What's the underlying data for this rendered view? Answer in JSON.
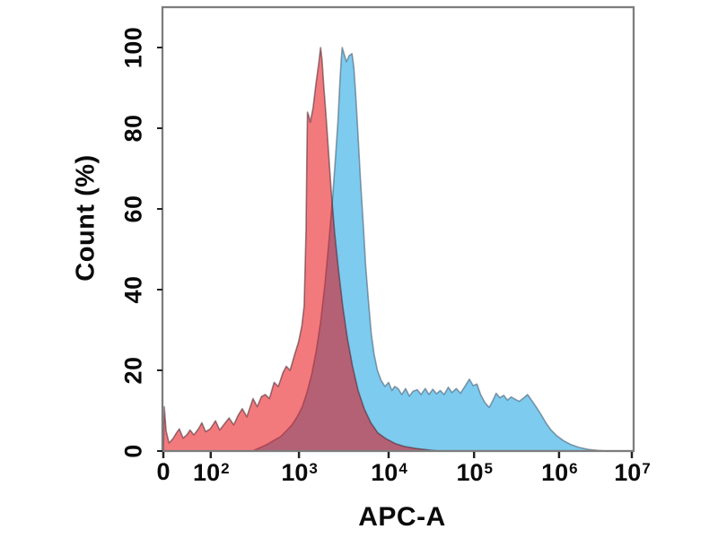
{
  "chart_data": {
    "type": "area",
    "subtype": "flow-cytometry-overlay-histogram",
    "title": "",
    "xlabel": "APC-A",
    "ylabel": "Count (%)",
    "x_scale": "biexponential-log",
    "grid": false,
    "legend": "none",
    "ylim": [
      0,
      100
    ],
    "y_ticks": [
      0,
      20,
      40,
      60,
      80,
      100
    ],
    "x_ticks": [
      {
        "base": "0",
        "exp": "",
        "frac": 0.0
      },
      {
        "base": "10",
        "exp": "2",
        "frac": 0.101
      },
      {
        "base": "10",
        "exp": "3",
        "frac": 0.289
      },
      {
        "base": "10",
        "exp": "4",
        "frac": 0.48
      },
      {
        "base": "10",
        "exp": "5",
        "frac": 0.662
      },
      {
        "base": "10",
        "exp": "6",
        "frac": 0.843
      },
      {
        "base": "10",
        "exp": "7",
        "frac": 0.998
      }
    ],
    "frame_color": "#7d7d7d",
    "tick_color": "#222222",
    "series": [
      {
        "name": "blue-histogram",
        "fill": "#7dcbee",
        "stroke": "rgba(75,95,115,0.6)",
        "peak_x": "~3e3",
        "peak_pct": 100,
        "points": [
          [
            0.19,
            0
          ],
          [
            0.205,
            0.8
          ],
          [
            0.22,
            1.6
          ],
          [
            0.235,
            2.6
          ],
          [
            0.25,
            3.6
          ],
          [
            0.262,
            5
          ],
          [
            0.274,
            6.5
          ],
          [
            0.285,
            8.5
          ],
          [
            0.296,
            11
          ],
          [
            0.306,
            14.5
          ],
          [
            0.316,
            19
          ],
          [
            0.326,
            25
          ],
          [
            0.335,
            32
          ],
          [
            0.344,
            41
          ],
          [
            0.352,
            51
          ],
          [
            0.36,
            62
          ],
          [
            0.367,
            73
          ],
          [
            0.372,
            82
          ],
          [
            0.376,
            91
          ],
          [
            0.379,
            97
          ],
          [
            0.381,
            100
          ],
          [
            0.386,
            98
          ],
          [
            0.39,
            96.5
          ],
          [
            0.396,
            98
          ],
          [
            0.402,
            98.5
          ],
          [
            0.406,
            95
          ],
          [
            0.41,
            88
          ],
          [
            0.415,
            78
          ],
          [
            0.42,
            67
          ],
          [
            0.426,
            56
          ],
          [
            0.431,
            46
          ],
          [
            0.437,
            37
          ],
          [
            0.443,
            29
          ],
          [
            0.449,
            24
          ],
          [
            0.456,
            20
          ],
          [
            0.464,
            17.5
          ],
          [
            0.472,
            16
          ],
          [
            0.48,
            17
          ],
          [
            0.487,
            15
          ],
          [
            0.493,
            16
          ],
          [
            0.5,
            15.5
          ],
          [
            0.508,
            14
          ],
          [
            0.516,
            15.5
          ],
          [
            0.524,
            13.6
          ],
          [
            0.532,
            14.8
          ],
          [
            0.541,
            15.2
          ],
          [
            0.549,
            14
          ],
          [
            0.558,
            15.5
          ],
          [
            0.566,
            14
          ],
          [
            0.574,
            15.3
          ],
          [
            0.582,
            14.2
          ],
          [
            0.59,
            15
          ],
          [
            0.598,
            14
          ],
          [
            0.607,
            15.8
          ],
          [
            0.615,
            14.5
          ],
          [
            0.624,
            15.5
          ],
          [
            0.633,
            14.3
          ],
          [
            0.645,
            16.5
          ],
          [
            0.652,
            17.8
          ],
          [
            0.66,
            16.2
          ],
          [
            0.668,
            16.6
          ],
          [
            0.676,
            14
          ],
          [
            0.685,
            12
          ],
          [
            0.694,
            10.8
          ],
          [
            0.702,
            12.5
          ],
          [
            0.709,
            14.3
          ],
          [
            0.717,
            13.2
          ],
          [
            0.725,
            13.8
          ],
          [
            0.733,
            12.6
          ],
          [
            0.741,
            13.4
          ],
          [
            0.75,
            12.8
          ],
          [
            0.758,
            12.3
          ],
          [
            0.768,
            13.2
          ],
          [
            0.776,
            14
          ],
          [
            0.785,
            12.5
          ],
          [
            0.795,
            10.8
          ],
          [
            0.805,
            9
          ],
          [
            0.815,
            7
          ],
          [
            0.826,
            5.2
          ],
          [
            0.838,
            3.8
          ],
          [
            0.852,
            2.6
          ],
          [
            0.868,
            1.6
          ],
          [
            0.885,
            0.9
          ],
          [
            0.905,
            0.4
          ],
          [
            0.925,
            0.15
          ],
          [
            0.945,
            0
          ]
        ]
      },
      {
        "name": "red-histogram",
        "fill": "rgba(230,0,5,0.52)",
        "stroke": "rgba(70,35,45,0.55)",
        "peak_x": "~1.5e3",
        "peak_pct": 100,
        "points": [
          [
            0.0,
            0
          ],
          [
            0.002,
            11
          ],
          [
            0.006,
            5
          ],
          [
            0.012,
            2
          ],
          [
            0.02,
            3
          ],
          [
            0.028,
            4.5
          ],
          [
            0.034,
            5.5
          ],
          [
            0.042,
            3.2
          ],
          [
            0.05,
            4
          ],
          [
            0.057,
            5.2
          ],
          [
            0.065,
            4
          ],
          [
            0.075,
            5.5
          ],
          [
            0.082,
            7
          ],
          [
            0.09,
            4.8
          ],
          [
            0.1,
            5.5
          ],
          [
            0.111,
            7.5
          ],
          [
            0.12,
            5.2
          ],
          [
            0.132,
            7
          ],
          [
            0.14,
            8.2
          ],
          [
            0.15,
            6.5
          ],
          [
            0.16,
            9
          ],
          [
            0.168,
            10.5
          ],
          [
            0.178,
            8.5
          ],
          [
            0.191,
            13
          ],
          [
            0.2,
            11
          ],
          [
            0.209,
            13.5
          ],
          [
            0.217,
            14
          ],
          [
            0.226,
            13
          ],
          [
            0.236,
            17
          ],
          [
            0.245,
            16
          ],
          [
            0.255,
            19.5
          ],
          [
            0.262,
            21
          ],
          [
            0.27,
            20
          ],
          [
            0.28,
            24
          ],
          [
            0.288,
            27
          ],
          [
            0.295,
            31
          ],
          [
            0.3,
            36
          ],
          [
            0.304,
            55
          ],
          [
            0.306,
            75
          ],
          [
            0.307,
            84
          ],
          [
            0.31,
            83
          ],
          [
            0.313,
            81.5
          ],
          [
            0.319,
            85
          ],
          [
            0.325,
            91
          ],
          [
            0.331,
            96
          ],
          [
            0.335,
            100
          ],
          [
            0.338,
            97
          ],
          [
            0.342,
            90
          ],
          [
            0.346,
            84
          ],
          [
            0.352,
            74
          ],
          [
            0.358,
            64
          ],
          [
            0.365,
            54
          ],
          [
            0.373,
            45
          ],
          [
            0.382,
            36
          ],
          [
            0.392,
            28
          ],
          [
            0.403,
            21
          ],
          [
            0.415,
            15
          ],
          [
            0.428,
            10.5
          ],
          [
            0.442,
            7
          ],
          [
            0.457,
            4.5
          ],
          [
            0.475,
            3
          ],
          [
            0.495,
            1.8
          ],
          [
            0.515,
            1.1
          ],
          [
            0.54,
            0.6
          ],
          [
            0.57,
            0.2
          ],
          [
            0.59,
            0
          ]
        ]
      }
    ]
  }
}
